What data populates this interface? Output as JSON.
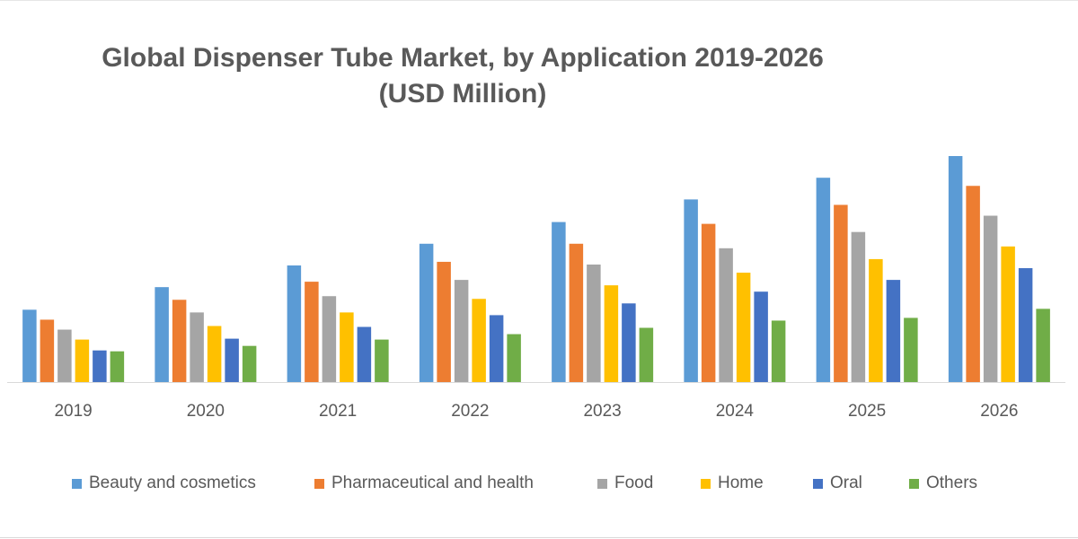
{
  "chart_data": {
    "type": "bar",
    "title": "Global Dispenser Tube Market, by Application 2019-2026",
    "subtitle": "(USD Million)",
    "xlabel": "",
    "ylabel": "",
    "categories": [
      "2019",
      "2020",
      "2021",
      "2022",
      "2023",
      "2024",
      "2025",
      "2026"
    ],
    "ylim": [
      0,
      260
    ],
    "grid": false,
    "legend_position": "bottom",
    "series": [
      {
        "name": "Beauty and cosmetics",
        "color": "#5B9BD5",
        "values": [
          80,
          105,
          129,
          153,
          177,
          202,
          226,
          250
        ]
      },
      {
        "name": "Pharmaceutical and health",
        "color": "#ED7D31",
        "values": [
          69,
          91,
          111,
          133,
          153,
          175,
          196,
          217
        ]
      },
      {
        "name": "Food",
        "color": "#A5A5A5",
        "values": [
          58,
          77,
          95,
          113,
          130,
          148,
          166,
          184
        ]
      },
      {
        "name": "Home",
        "color": "#FFC000",
        "values": [
          47,
          62,
          77,
          92,
          107,
          121,
          136,
          150
        ]
      },
      {
        "name": "Oral",
        "color": "#4472C4",
        "values": [
          35,
          48,
          61,
          74,
          87,
          100,
          113,
          126
        ]
      },
      {
        "name": "Others",
        "color": "#70AD47",
        "values": [
          34,
          40,
          47,
          53,
          60,
          68,
          71,
          81
        ]
      }
    ]
  }
}
